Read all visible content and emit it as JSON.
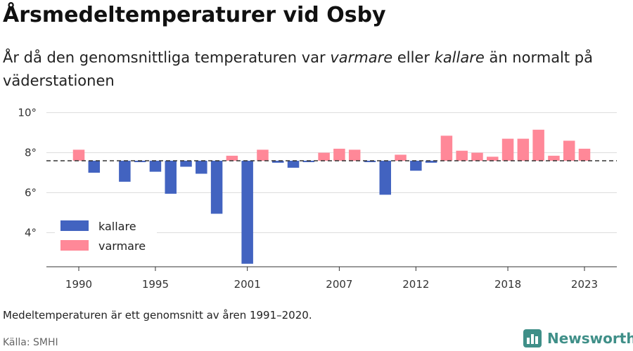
{
  "header": {
    "title": "Årsmedeltemperaturer vid Osby",
    "subtitle_parts": {
      "p1": "År då den genomsnittliga temperaturen var ",
      "warm": "varmare",
      "p2": " eller ",
      "cold": "kallare",
      "p3": " än normalt på väderstationen"
    }
  },
  "footer": {
    "note": "Medeltemperaturen är ett genomsnitt av åren 1991–2020.",
    "source": "Källa: SMHI",
    "brand": "Newsworthy"
  },
  "colors": {
    "kallare": "#4263c0",
    "varmare": "#ff8898",
    "brand": "#3f8f88",
    "reference_line": "#333333",
    "grid": "#dddddd"
  },
  "chart_data": {
    "type": "bar",
    "baseline": 7.6,
    "ylim": [
      2.3,
      10.3
    ],
    "y_ticks": [
      4,
      6,
      8,
      10
    ],
    "y_tick_suffix": "°",
    "x_ticks": [
      1990,
      1995,
      2001,
      2007,
      2012,
      2018,
      2023
    ],
    "grid": true,
    "legend_position": "bottom-left",
    "legend": [
      {
        "key": "kallare",
        "label": "kallare"
      },
      {
        "key": "varmare",
        "label": "varmare"
      }
    ],
    "x": [
      1990,
      1991,
      1993,
      1994,
      1995,
      1996,
      1997,
      1998,
      1999,
      2000,
      2001,
      2002,
      2003,
      2004,
      2005,
      2006,
      2007,
      2008,
      2009,
      2010,
      2011,
      2012,
      2013,
      2014,
      2015,
      2016,
      2017,
      2018,
      2019,
      2020,
      2021,
      2022,
      2023
    ],
    "values": [
      8.15,
      7.0,
      6.55,
      7.55,
      7.05,
      5.95,
      7.3,
      6.95,
      4.95,
      7.85,
      2.45,
      8.15,
      7.5,
      7.25,
      7.55,
      8.0,
      8.2,
      8.15,
      7.55,
      5.9,
      7.9,
      7.1,
      7.5,
      8.85,
      8.1,
      8.0,
      7.8,
      8.7,
      8.7,
      9.15,
      7.85,
      8.6,
      8.2
    ]
  }
}
